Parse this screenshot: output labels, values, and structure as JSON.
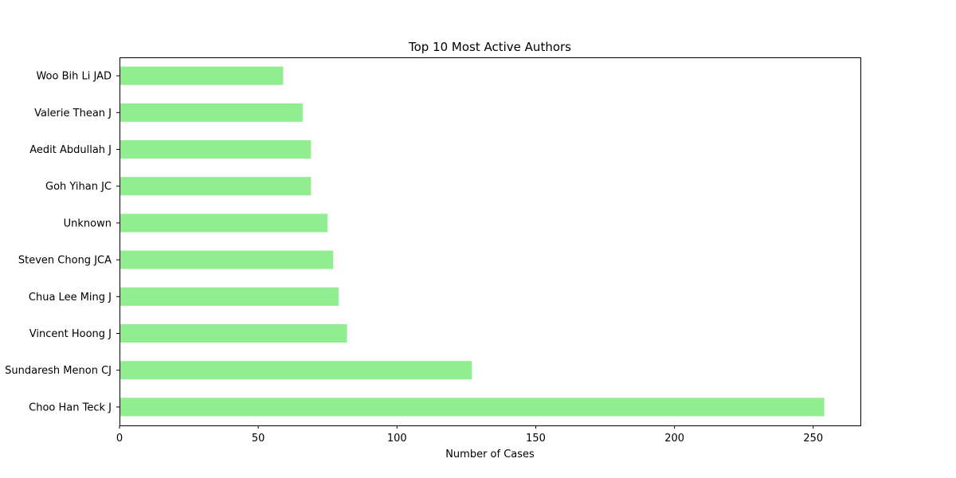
{
  "chart_data": {
    "type": "bar",
    "orientation": "horizontal",
    "title": "Top 10 Most Active Authors",
    "xlabel": "Number of Cases",
    "ylabel": "",
    "categories": [
      "Woo Bih Li JAD",
      "Valerie Thean J",
      "Aedit Abdullah J",
      "Goh Yihan JC",
      "Unknown",
      "Steven Chong JCA",
      "Chua Lee Ming J",
      "Vincent Hoong J",
      "Sundaresh Menon CJ",
      "Choo Han Teck J"
    ],
    "values": [
      59,
      66,
      69,
      69,
      75,
      77,
      79,
      82,
      127,
      254
    ],
    "xlim": [
      0,
      267
    ],
    "xticks": [
      0,
      50,
      100,
      150,
      200,
      250
    ],
    "grid": false,
    "legend": "none",
    "bar_color": "#90ee90"
  }
}
